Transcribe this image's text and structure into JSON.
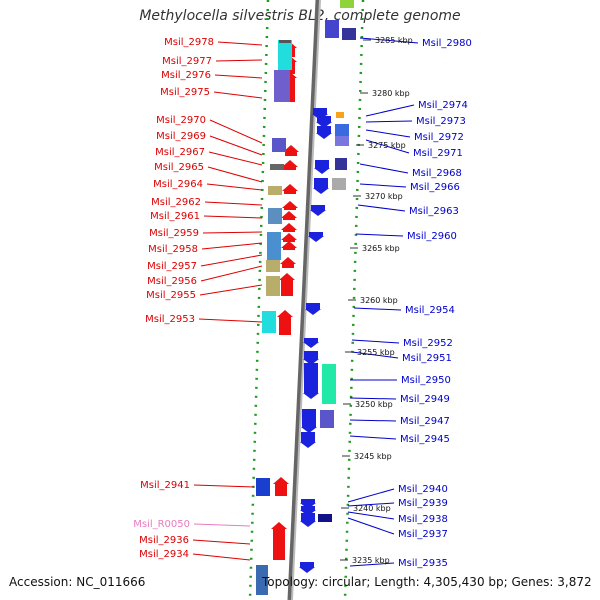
{
  "title": "Methylocella silvestris BL2, complete genome",
  "accession": "Accession: NC_011666",
  "topology": "Topology: circular; Length: 4,305,430 bp; Genes: 3,872",
  "colors": {
    "left_label": "#dd0000",
    "right_label": "#0000cc",
    "rna_label": "#e87bc0",
    "strand_fwd": "#ee0000",
    "strand_rev": "#0000dd"
  },
  "ticks": [
    "3285 kbp",
    "3280 kbp",
    "3275 kbp",
    "3270 kbp",
    "3265 kbp",
    "3260 kbp",
    "3255 kbp",
    "3250 kbp",
    "3245 kbp",
    "3240 kbp",
    "3235 kbp"
  ],
  "left_labels": [
    "Msil_2978",
    "Msil_2977",
    "Msil_2976",
    "Msil_2975",
    "Msil_2970",
    "Msil_2969",
    "Msil_2967",
    "Msil_2965",
    "Msil_2964",
    "Msil_2962",
    "Msil_2961",
    "Msil_2959",
    "Msil_2958",
    "Msil_2957",
    "Msil_2956",
    "Msil_2955",
    "Msil_2953",
    "Msil_2941",
    "Msil_R0050",
    "Msil_2936",
    "Msil_2934"
  ],
  "right_labels": [
    "Msil_2980",
    "Msil_2974",
    "Msil_2973",
    "Msil_2972",
    "Msil_2971",
    "Msil_2968",
    "Msil_2966",
    "Msil_2963",
    "Msil_2960",
    "Msil_2954",
    "Msil_2952",
    "Msil_2951",
    "Msil_2950",
    "Msil_2949",
    "Msil_2947",
    "Msil_2945",
    "Msil_2940",
    "Msil_2939",
    "Msil_2938",
    "Msil_2937",
    "Msil_2935"
  ]
}
